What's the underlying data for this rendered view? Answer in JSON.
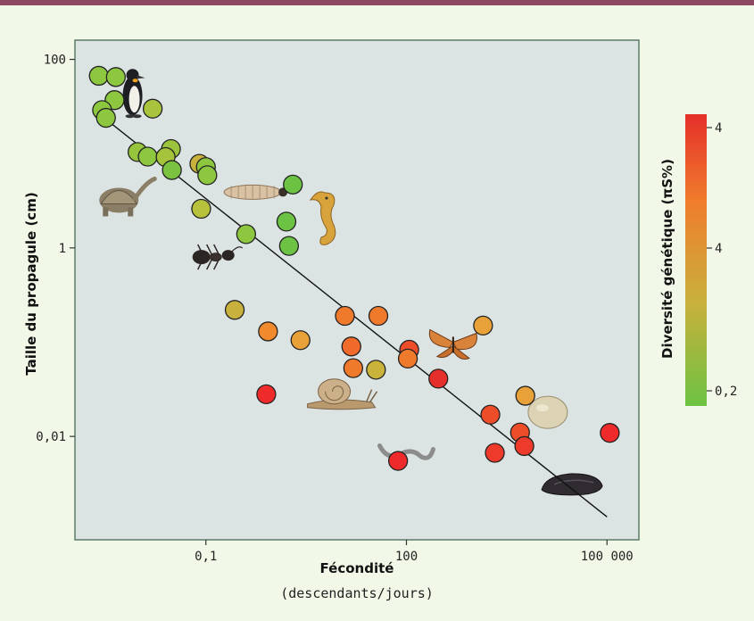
{
  "chart_data": {
    "type": "scatter",
    "xlabel": "Fécondité",
    "xlabel_sub": "(descendants/jours)",
    "ylabel": "Taille du propagule (cm)",
    "x_scale": "log",
    "y_scale": "log",
    "xlim": [
      0.0011,
      300000
    ],
    "ylim": [
      0.0008,
      160
    ],
    "xticks": [
      {
        "value": 0.1,
        "label": "0,1"
      },
      {
        "value": 100,
        "label": "100"
      },
      {
        "value": 100000,
        "label": "100 000"
      }
    ],
    "yticks": [
      {
        "value": 100,
        "label": "100"
      },
      {
        "value": 1,
        "label": "1"
      },
      {
        "value": 0.01,
        "label": "0,01"
      }
    ],
    "colorbar": {
      "title": "Diversité génétique (πS%)",
      "tick_labels": [
        "4",
        "4",
        "0,2"
      ],
      "colors": [
        "#e52f2a",
        "#f07d2c",
        "#c8b13c",
        "#6cc242"
      ]
    },
    "fit_line": {
      "x": [
        0.003,
        100000
      ],
      "y": [
        24,
        0.0014
      ]
    },
    "points": [
      {
        "x": 0.0025,
        "y": 67,
        "color": "#8dc63f"
      },
      {
        "x": 0.0045,
        "y": 65,
        "color": "#8dc63f"
      },
      {
        "x": 0.0043,
        "y": 37,
        "color": "#8dc63f"
      },
      {
        "x": 0.0028,
        "y": 29,
        "color": "#8dc63f"
      },
      {
        "x": 0.0032,
        "y": 24,
        "color": "#8dc63f"
      },
      {
        "x": 0.016,
        "y": 30,
        "color": "#a8c43c"
      },
      {
        "x": 0.0095,
        "y": 10.4,
        "color": "#96c43d"
      },
      {
        "x": 0.0135,
        "y": 9.3,
        "color": "#8dc63f"
      },
      {
        "x": 0.03,
        "y": 11.2,
        "color": "#9cc33d"
      },
      {
        "x": 0.025,
        "y": 9.2,
        "color": "#a5c43b"
      },
      {
        "x": 0.031,
        "y": 6.7,
        "color": "#7cc241"
      },
      {
        "x": 0.08,
        "y": 7.8,
        "color": "#c8b13c"
      },
      {
        "x": 0.1,
        "y": 7.2,
        "color": "#8dc63f"
      },
      {
        "x": 0.105,
        "y": 5.9,
        "color": "#8dc63f"
      },
      {
        "x": 0.085,
        "y": 2.6,
        "color": "#b7c13b"
      },
      {
        "x": 0.4,
        "y": 1.4,
        "color": "#8dc63f"
      },
      {
        "x": 2.0,
        "y": 4.7,
        "color": "#6cc242"
      },
      {
        "x": 1.6,
        "y": 1.9,
        "color": "#6cc242"
      },
      {
        "x": 1.75,
        "y": 1.05,
        "color": "#6cc242"
      },
      {
        "x": 0.27,
        "y": 0.22,
        "color": "#c8b13c"
      },
      {
        "x": 0.85,
        "y": 0.13,
        "color": "#f08a2c"
      },
      {
        "x": 2.6,
        "y": 0.105,
        "color": "#e8a138"
      },
      {
        "x": 12,
        "y": 0.19,
        "color": "#f07a2c"
      },
      {
        "x": 38,
        "y": 0.19,
        "color": "#f07a2c"
      },
      {
        "x": 15,
        "y": 0.09,
        "color": "#f06a2c"
      },
      {
        "x": 16,
        "y": 0.053,
        "color": "#f07a2c"
      },
      {
        "x": 35,
        "y": 0.051,
        "color": "#c9b33a"
      },
      {
        "x": 110,
        "y": 0.083,
        "color": "#ee4d2a"
      },
      {
        "x": 105,
        "y": 0.067,
        "color": "#f07a2c"
      },
      {
        "x": 300,
        "y": 0.041,
        "color": "#e52f2a"
      },
      {
        "x": 1400,
        "y": 0.15,
        "color": "#e8a138"
      },
      {
        "x": 1800,
        "y": 0.017,
        "color": "#ee4d2a"
      },
      {
        "x": 6000,
        "y": 0.027,
        "color": "#e8a138"
      },
      {
        "x": 0.8,
        "y": 0.028,
        "color": "#ee2b2a"
      },
      {
        "x": 5000,
        "y": 0.011,
        "color": "#ee4d2a"
      },
      {
        "x": 2100,
        "y": 0.0067,
        "color": "#ee3a2a"
      },
      {
        "x": 5800,
        "y": 0.0079,
        "color": "#ee3a2a"
      },
      {
        "x": 75,
        "y": 0.0055,
        "color": "#ee2b2a"
      },
      {
        "x": 110000,
        "y": 0.0109,
        "color": "#ee2b2a"
      }
    ],
    "images": [
      {
        "name": "penguin-image",
        "x": 0.008,
        "y": 45
      },
      {
        "name": "tortoise-image",
        "x": 0.005,
        "y": 3.2
      },
      {
        "name": "larva-image",
        "x": 0.5,
        "y": 3.9
      },
      {
        "name": "seahorse-image",
        "x": 6,
        "y": 2.0
      },
      {
        "name": "ant-image",
        "x": 0.14,
        "y": 0.8
      },
      {
        "name": "snail-image",
        "x": 10,
        "y": 0.03
      },
      {
        "name": "butterfly-image",
        "x": 500,
        "y": 0.1
      },
      {
        "name": "worm-image",
        "x": 100,
        "y": 0.007
      },
      {
        "name": "egg-image",
        "x": 13000,
        "y": 0.018
      },
      {
        "name": "mussel-image",
        "x": 30000,
        "y": 0.0031
      }
    ]
  }
}
